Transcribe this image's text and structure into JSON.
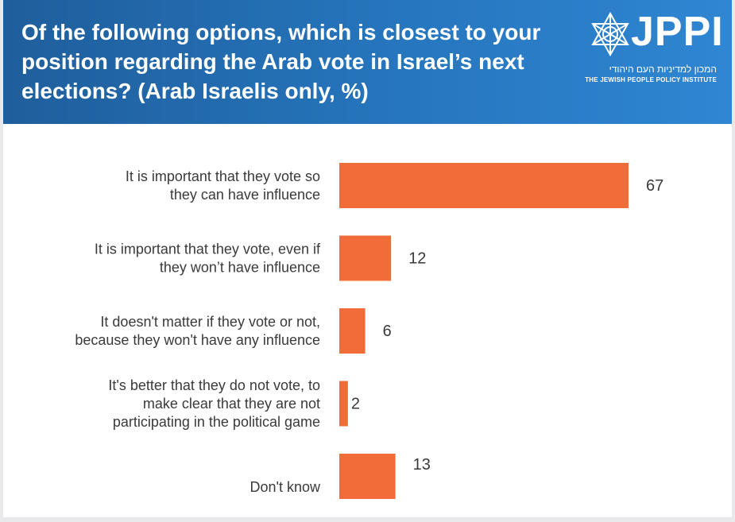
{
  "header": {
    "title": "Of the following options, which is closest to your position regarding the Arab vote in Israel’s next elections? (Arab Israelis only, %)",
    "logo_text": "JPPI",
    "logo_hebrew": "המכון למדיניות העם היהודי",
    "logo_subtitle": "THE JEWISH PEOPLE POLICY INSTITUTE"
  },
  "colors": {
    "bar": "#f26c3a",
    "header": "#2676be"
  },
  "chart_data": {
    "type": "bar",
    "orientation": "horizontal",
    "title": "Of the following options, which is closest to your position regarding the Arab vote in Israel’s next elections? (Arab Israelis only, %)",
    "categories": [
      [
        "It is important that they vote so",
        "they can have influence"
      ],
      [
        "It is important that they vote, even if",
        "they won’t have influence"
      ],
      [
        "It doesn't matter if they vote or not,",
        "because they won't have any influence"
      ],
      [
        "It's better that they  do not vote, to",
        "make clear that they are not",
        "participating in the political game"
      ],
      [
        "Don't know"
      ]
    ],
    "values": [
      67,
      12,
      6,
      2,
      13
    ],
    "xlim": [
      0,
      67
    ],
    "grid": false,
    "legend": "none"
  }
}
